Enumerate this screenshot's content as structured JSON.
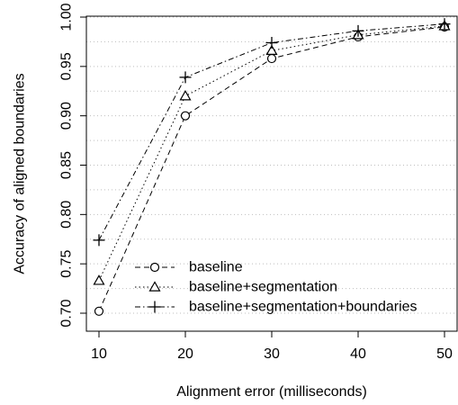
{
  "chart_data": {
    "type": "line",
    "title": "",
    "xlabel": "Alignment error (milliseconds)",
    "ylabel": "Accuracy of aligned boundaries",
    "x": [
      10,
      20,
      30,
      40,
      50
    ],
    "xlim": [
      10,
      50
    ],
    "ylim": [
      0.7,
      1.0
    ],
    "xticks": [
      "10",
      "20",
      "30",
      "40",
      "50"
    ],
    "yticks": [
      "0.70",
      "0.75",
      "0.80",
      "0.85",
      "0.90",
      "0.95",
      "1.00"
    ],
    "grid": "horizontal-dotted",
    "legend_position": "bottom-right",
    "series": [
      {
        "name": "baseline",
        "marker": "circle",
        "dash": "dashed",
        "values": [
          0.702,
          0.9,
          0.958,
          0.98,
          0.99
        ]
      },
      {
        "name": "baseline+segmentation",
        "marker": "triangle",
        "dash": "dotted",
        "values": [
          0.733,
          0.92,
          0.966,
          0.982,
          0.991
        ]
      },
      {
        "name": "baseline+segmentation+boundaries",
        "marker": "plus",
        "dash": "dashdot",
        "values": [
          0.774,
          0.939,
          0.974,
          0.986,
          0.993
        ]
      }
    ]
  }
}
